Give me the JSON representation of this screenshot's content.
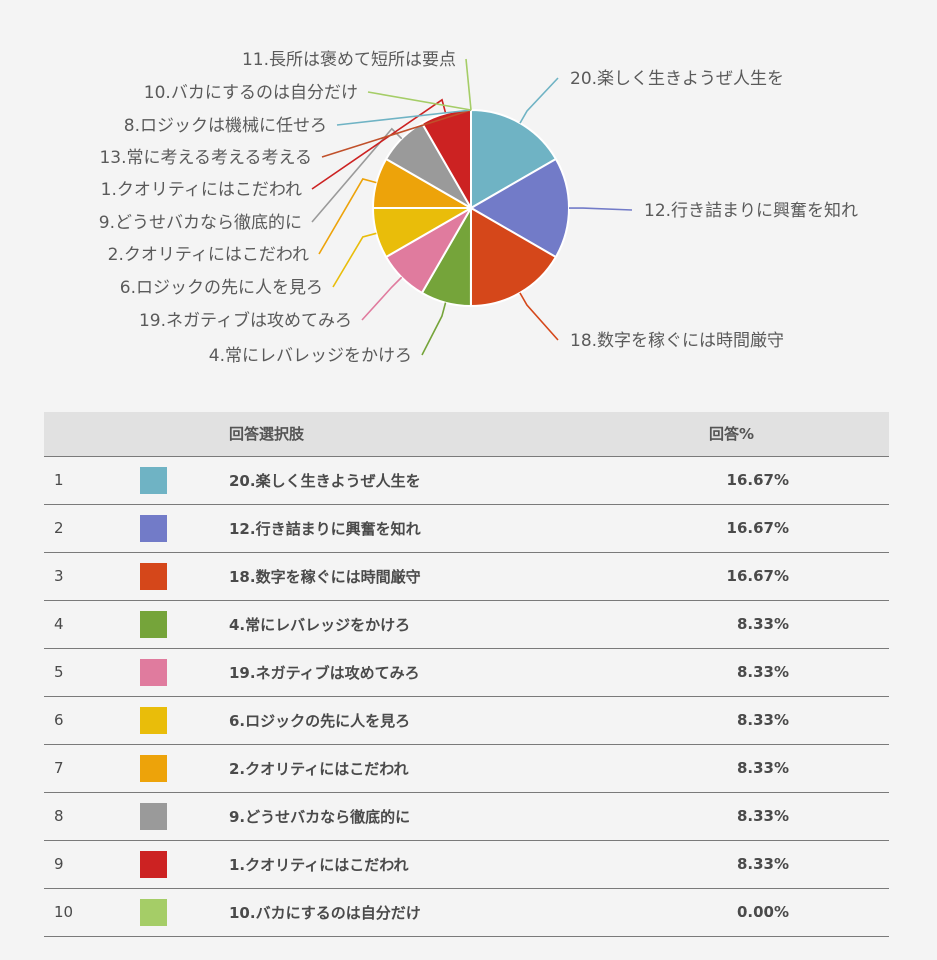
{
  "chart_data": {
    "type": "pie",
    "slices": [
      {
        "label": "20.楽しく生きようぜ人生を",
        "value": 16.67,
        "color": "#6fb3c4"
      },
      {
        "label": "12.行き詰まりに興奮を知れ",
        "value": 16.67,
        "color": "#727bc8"
      },
      {
        "label": "18.数字を稼ぐには時間厳守",
        "value": 16.67,
        "color": "#d5471a"
      },
      {
        "label": "4.常にレバレッジをかけろ",
        "value": 8.33,
        "color": "#75a43a"
      },
      {
        "label": "19.ネガティブは攻めてみろ",
        "value": 8.33,
        "color": "#e07b9e"
      },
      {
        "label": "6.ロジックの先に人を見ろ",
        "value": 8.33,
        "color": "#e9bd0a"
      },
      {
        "label": "2.クオリティにはこだわれ",
        "value": 8.33,
        "color": "#eda30a"
      },
      {
        "label": "9.どうせバカなら徹底的に",
        "value": 8.33,
        "color": "#9a9a9a"
      },
      {
        "label": "1.クオリティにはこだわれ",
        "value": 8.33,
        "color": "#cc2222"
      },
      {
        "label": "13.常に考える考える考える",
        "value": 0,
        "color": "#c0502a"
      },
      {
        "label": "8.ロジックは機械に任せろ",
        "value": 0,
        "color": "#6fb3c4"
      },
      {
        "label": "10.バカにするのは自分だけ",
        "value": 0,
        "color": "#a5cd67"
      },
      {
        "label": "11.長所は褒めて短所は要点",
        "value": 0,
        "color": "#a5cd67"
      }
    ],
    "legend": "callout-labels"
  },
  "table": {
    "headers": {
      "rank": "",
      "swatch": "",
      "choice": "回答選択肢",
      "pct": "回答%"
    },
    "rows": [
      {
        "rank": "1",
        "choice": "20.楽しく生きようぜ人生を",
        "pct": "16.67%",
        "color": "#6fb3c4"
      },
      {
        "rank": "2",
        "choice": "12.行き詰まりに興奮を知れ",
        "pct": "16.67%",
        "color": "#727bc8"
      },
      {
        "rank": "3",
        "choice": "18.数字を稼ぐには時間厳守",
        "pct": "16.67%",
        "color": "#d5471a"
      },
      {
        "rank": "4",
        "choice": "4.常にレバレッジをかけろ",
        "pct": "8.33%",
        "color": "#75a43a"
      },
      {
        "rank": "5",
        "choice": "19.ネガティブは攻めてみろ",
        "pct": "8.33%",
        "color": "#e07b9e"
      },
      {
        "rank": "6",
        "choice": "6.ロジックの先に人を見ろ",
        "pct": "8.33%",
        "color": "#e9bd0a"
      },
      {
        "rank": "7",
        "choice": "2.クオリティにはこだわれ",
        "pct": "8.33%",
        "color": "#eda30a"
      },
      {
        "rank": "8",
        "choice": "9.どうせバカなら徹底的に",
        "pct": "8.33%",
        "color": "#9a9a9a"
      },
      {
        "rank": "9",
        "choice": "1.クオリティにはこだわれ",
        "pct": "8.33%",
        "color": "#cc2222"
      },
      {
        "rank": "10",
        "choice": "10.バカにするのは自分だけ",
        "pct": "0.00%",
        "color": "#a5cd67"
      }
    ]
  }
}
